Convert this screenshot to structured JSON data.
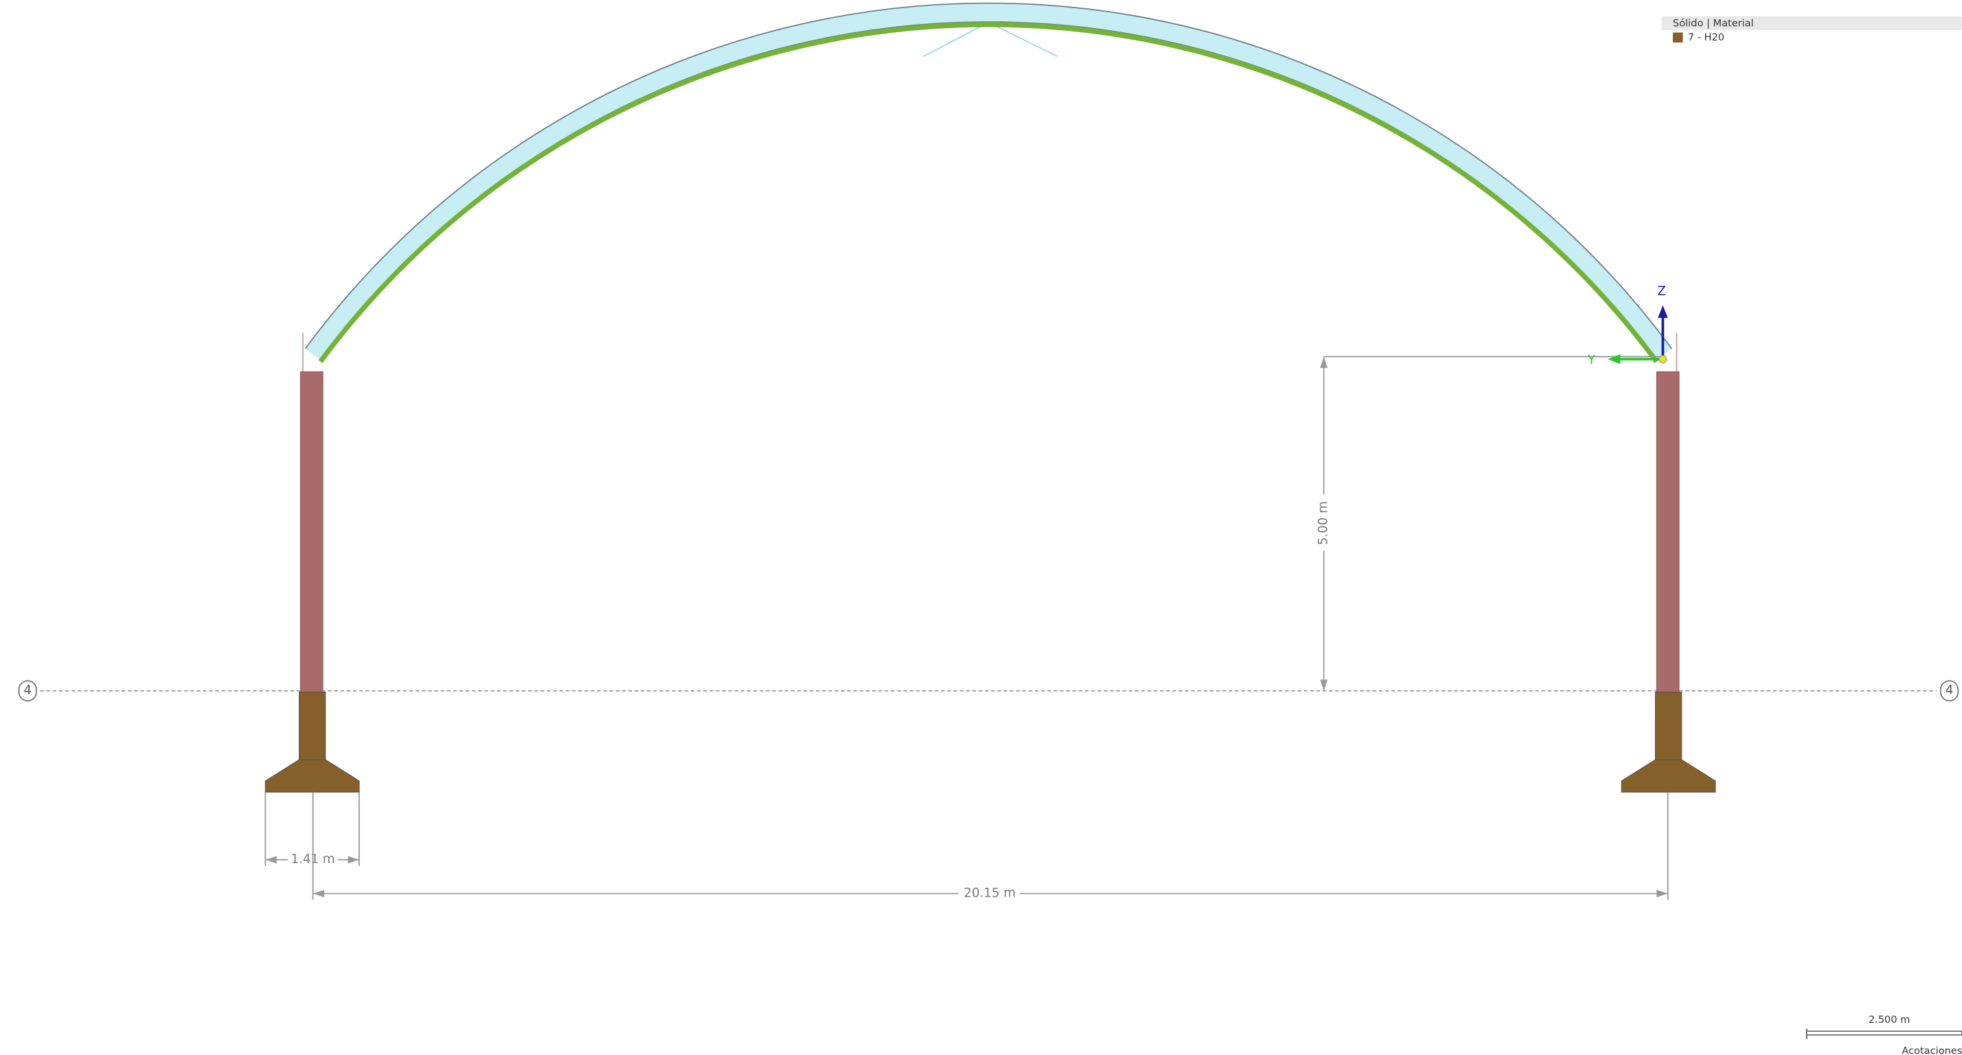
{
  "legend": {
    "header": "Sólido | Material",
    "items": [
      "7 - H20"
    ]
  },
  "axes": {
    "z": "Z",
    "y": "Y"
  },
  "dimensions": {
    "height": "5.00 m",
    "footing_width": "1.41 m",
    "span": "20.15 m"
  },
  "grid_labels": [
    "4",
    "4"
  ],
  "scale_bar": "2.500 m",
  "footer": "Acotaciones"
}
